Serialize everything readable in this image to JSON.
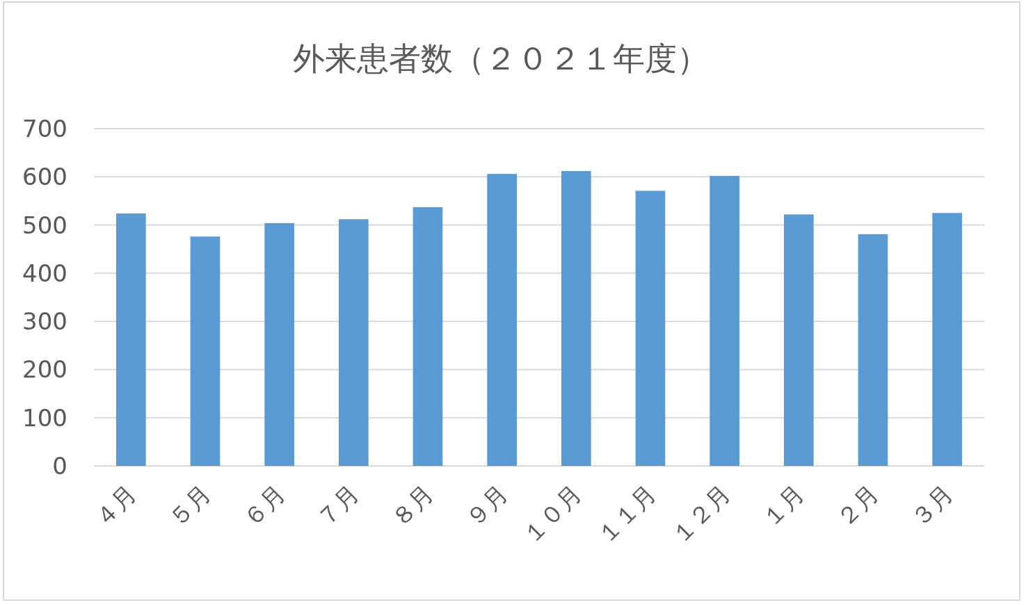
{
  "chart_data": {
    "type": "bar",
    "title": "外来患者数（２０２１年度）",
    "categories": [
      "４月",
      "５月",
      "６月",
      "７月",
      "８月",
      "９月",
      "１０月",
      "１１月",
      "１２月",
      "１月",
      "２月",
      "３月"
    ],
    "values": [
      524,
      476,
      504,
      512,
      537,
      606,
      612,
      571,
      602,
      522,
      481,
      525
    ],
    "color": "#5b9bd5",
    "ylim": [
      0,
      700
    ],
    "yticks": [
      0,
      100,
      200,
      300,
      400,
      500,
      600,
      700
    ],
    "grid": "y"
  }
}
